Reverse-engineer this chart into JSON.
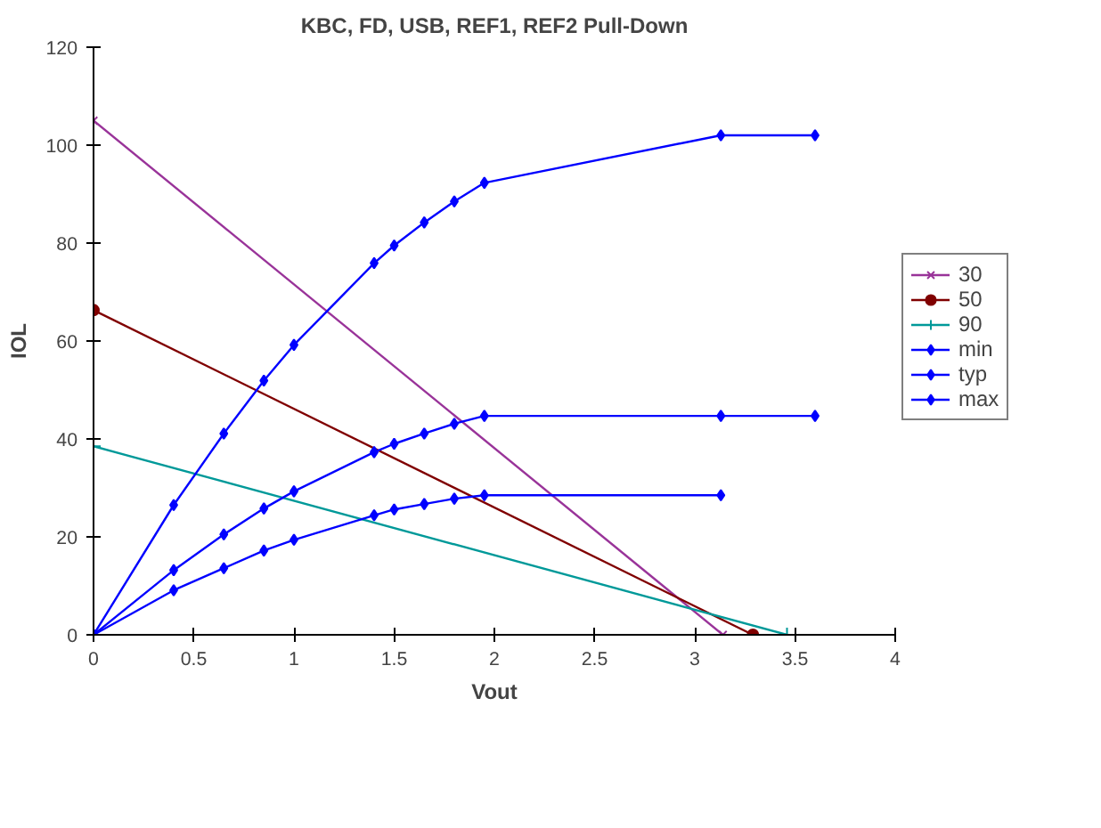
{
  "chart_data": {
    "type": "line",
    "title": "KBC, FD, USB, REF1, REF2 Pull-Down",
    "xlabel": "Vout",
    "ylabel": "IOL",
    "xlim": [
      0,
      4
    ],
    "ylim": [
      0,
      120
    ],
    "xticks": [
      0,
      0.5,
      1,
      1.5,
      2,
      2.5,
      3,
      3.5,
      4
    ],
    "yticks": [
      0,
      20,
      40,
      60,
      80,
      100,
      120
    ],
    "grid": false,
    "legend": "right",
    "series": [
      {
        "name": "30",
        "color": "#993399",
        "marker": "x",
        "x": [
          0,
          3.14
        ],
        "values": [
          105,
          0
        ]
      },
      {
        "name": "50",
        "color": "#800000",
        "marker": "circle",
        "x": [
          0,
          3.29
        ],
        "values": [
          66.3,
          0
        ]
      },
      {
        "name": "90",
        "color": "#009999",
        "marker": "cross",
        "x": [
          0,
          3.46
        ],
        "values": [
          38.5,
          0
        ]
      },
      {
        "name": "min",
        "color": "#0000ff",
        "marker": "diamond",
        "x": [
          0,
          0.4,
          0.65,
          0.85,
          1.0,
          1.4,
          1.5,
          1.65,
          1.8,
          1.95,
          3.13
        ],
        "values": [
          0,
          9.1,
          13.6,
          17.2,
          19.4,
          24.4,
          25.6,
          26.7,
          27.8,
          28.5,
          28.5
        ]
      },
      {
        "name": "typ",
        "color": "#0000ff",
        "marker": "diamond",
        "x": [
          0,
          0.4,
          0.65,
          0.85,
          1.0,
          1.4,
          1.5,
          1.65,
          1.8,
          1.95,
          3.13,
          3.6
        ],
        "values": [
          0,
          13.2,
          20.5,
          25.8,
          29.3,
          37.3,
          39.0,
          41.1,
          43.1,
          44.7,
          44.7,
          44.7
        ]
      },
      {
        "name": "max",
        "color": "#0000ff",
        "marker": "diamond",
        "x": [
          0,
          0.4,
          0.65,
          0.85,
          1.0,
          1.4,
          1.5,
          1.65,
          1.8,
          1.95,
          3.13,
          3.6
        ],
        "values": [
          0,
          26.5,
          41.1,
          51.9,
          59.2,
          75.9,
          79.5,
          84.2,
          88.5,
          92.3,
          102,
          102
        ]
      }
    ]
  }
}
